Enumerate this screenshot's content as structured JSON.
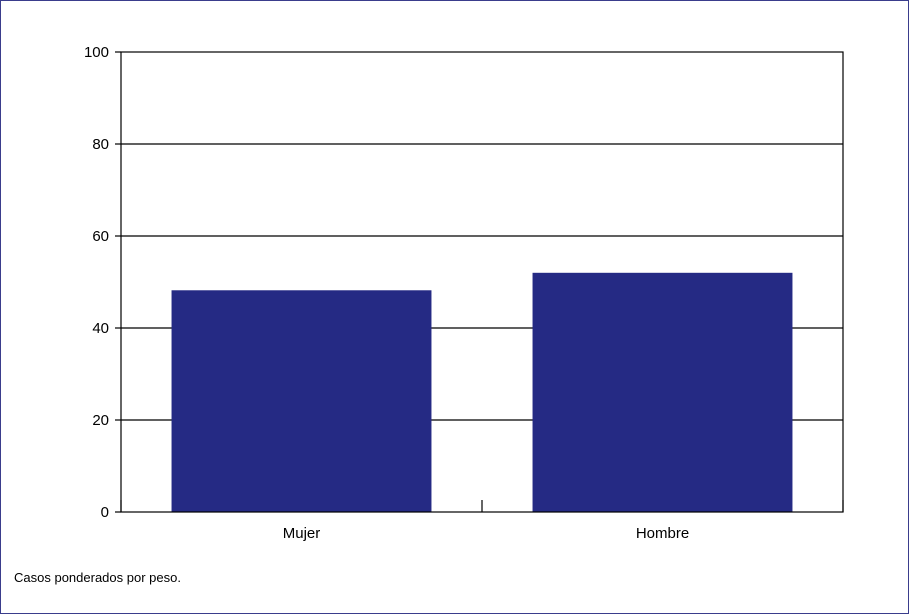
{
  "chart_data": {
    "type": "bar",
    "title": "",
    "xlabel": "",
    "ylabel": "",
    "categories": [
      "Mujer",
      "Hombre"
    ],
    "values": [
      48.2,
      52.0
    ],
    "ylim": [
      0,
      100
    ],
    "yticks": [
      0,
      20,
      40,
      60,
      80,
      100
    ],
    "grid": true,
    "bar_color": "#252a84"
  },
  "footnote": "Casos ponderados por peso."
}
